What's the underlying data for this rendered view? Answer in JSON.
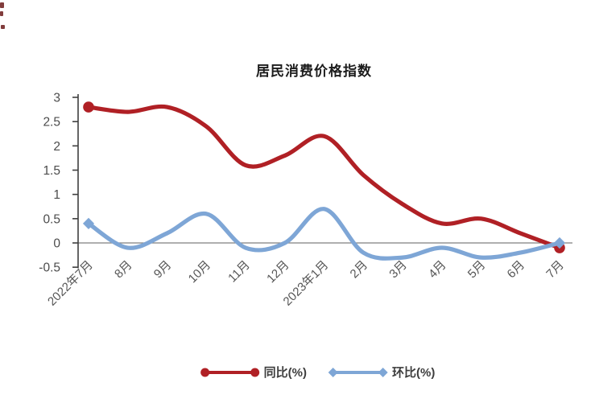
{
  "page": {
    "background": "#ffffff"
  },
  "chart_data": {
    "type": "line",
    "title": "居民消费价格指数",
    "categories": [
      "2022年7月",
      "8月",
      "9月",
      "10月",
      "11月",
      "12月",
      "2023年1月",
      "2月",
      "3月",
      "4月",
      "5月",
      "6月",
      "7月"
    ],
    "series": [
      {
        "name": "同比(%)",
        "color": "#b02025",
        "marker": "circle",
        "values": [
          2.8,
          2.7,
          2.8,
          2.4,
          1.6,
          1.8,
          2.2,
          1.4,
          0.8,
          0.4,
          0.5,
          0.2,
          -0.1
        ]
      },
      {
        "name": "环比(%)",
        "color": "#7ea6d6",
        "marker": "diamond",
        "values": [
          0.4,
          -0.1,
          0.2,
          0.6,
          -0.1,
          0.0,
          0.7,
          -0.2,
          -0.3,
          -0.1,
          -0.3,
          -0.2,
          0.0
        ]
      }
    ],
    "ylim": [
      -0.5,
      3
    ],
    "yticks": [
      3,
      2.5,
      2,
      1.5,
      1,
      0.5,
      0,
      -0.5
    ],
    "ytick_labels": [
      "3",
      "2.5",
      "2",
      "1.5",
      "1",
      "0.5",
      "0",
      "-0.5"
    ],
    "grid": "off",
    "legend_position": "bottom",
    "line_smoothing": true,
    "markers_on": "first-and-last-points-only",
    "colors": {
      "axis": "#3f3f3f",
      "zero_line": "#7f7f7f",
      "tick_label": "#4c4c4c",
      "title": "#1c1c1c"
    }
  }
}
